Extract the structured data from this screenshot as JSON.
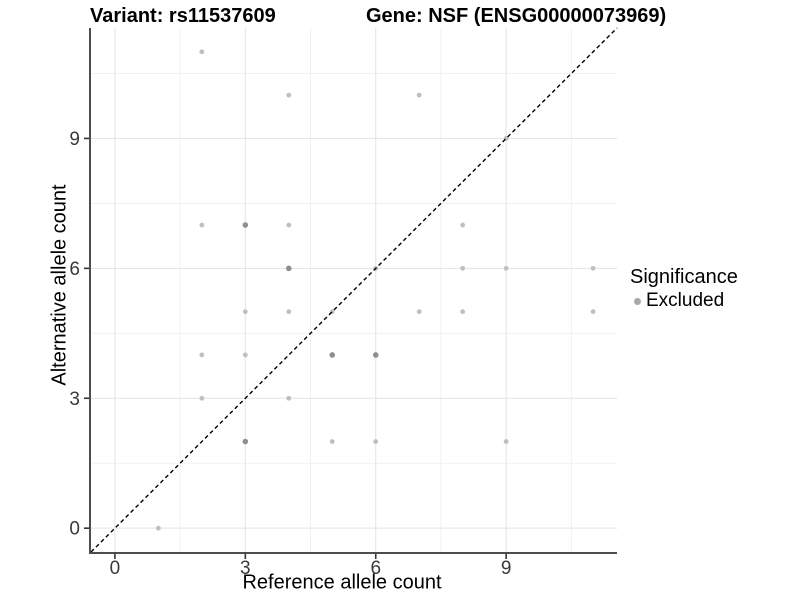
{
  "chart_data": {
    "type": "scatter",
    "title_left": "Variant: rs11537609",
    "title_right": "Gene: NSF (ENSG00000073969)",
    "xlabel": "Reference allele count",
    "ylabel": "Alternative allele count",
    "xlim": [
      -0.55,
      11.55
    ],
    "ylim": [
      -0.55,
      11.55
    ],
    "x_ticks": [
      0,
      3,
      6,
      9
    ],
    "y_ticks": [
      0,
      3,
      6,
      9
    ],
    "minor_gridlines": [
      1.5,
      4.5,
      7.5,
      10.5
    ],
    "grid": "major+minor",
    "legend_position": "right",
    "reference_line": "y = x, black dashed diagonal",
    "series": [
      {
        "name": "Excluded",
        "points": [
          {
            "x": 1,
            "y": 0
          },
          {
            "x": 3,
            "y": 2,
            "overlap": true
          },
          {
            "x": 5,
            "y": 2
          },
          {
            "x": 6,
            "y": 2
          },
          {
            "x": 9,
            "y": 2
          },
          {
            "x": 2,
            "y": 3
          },
          {
            "x": 4,
            "y": 3
          },
          {
            "x": 2,
            "y": 4
          },
          {
            "x": 3,
            "y": 4
          },
          {
            "x": 5,
            "y": 4,
            "overlap": true
          },
          {
            "x": 6,
            "y": 4,
            "overlap": true
          },
          {
            "x": 3,
            "y": 5
          },
          {
            "x": 4,
            "y": 5
          },
          {
            "x": 5,
            "y": 5
          },
          {
            "x": 7,
            "y": 5
          },
          {
            "x": 8,
            "y": 5
          },
          {
            "x": 11,
            "y": 5
          },
          {
            "x": 4,
            "y": 6,
            "overlap": true
          },
          {
            "x": 6,
            "y": 6
          },
          {
            "x": 8,
            "y": 6
          },
          {
            "x": 9,
            "y": 6
          },
          {
            "x": 11,
            "y": 6
          },
          {
            "x": 2,
            "y": 7
          },
          {
            "x": 3,
            "y": 7,
            "overlap": true
          },
          {
            "x": 4,
            "y": 7
          },
          {
            "x": 8,
            "y": 7
          },
          {
            "x": 9,
            "y": 9
          },
          {
            "x": 4,
            "y": 10
          },
          {
            "x": 7,
            "y": 10
          },
          {
            "x": 2,
            "y": 11
          }
        ]
      }
    ]
  },
  "legend": {
    "title": "Significance",
    "items": [
      {
        "label": "Excluded"
      }
    ]
  },
  "colors": {
    "point_light": "#bfbfbf",
    "point_dark": "#8f8f8f",
    "legend_dot": "#a8a8a8",
    "grid_major": "#e3e3e3",
    "grid_minor": "#f1f1f1",
    "axis_line": "#4d4d4d",
    "tick_mark": "#333333",
    "tick_text": "#3a3a3a",
    "reference_line": "#000000",
    "background": "#ffffff"
  }
}
